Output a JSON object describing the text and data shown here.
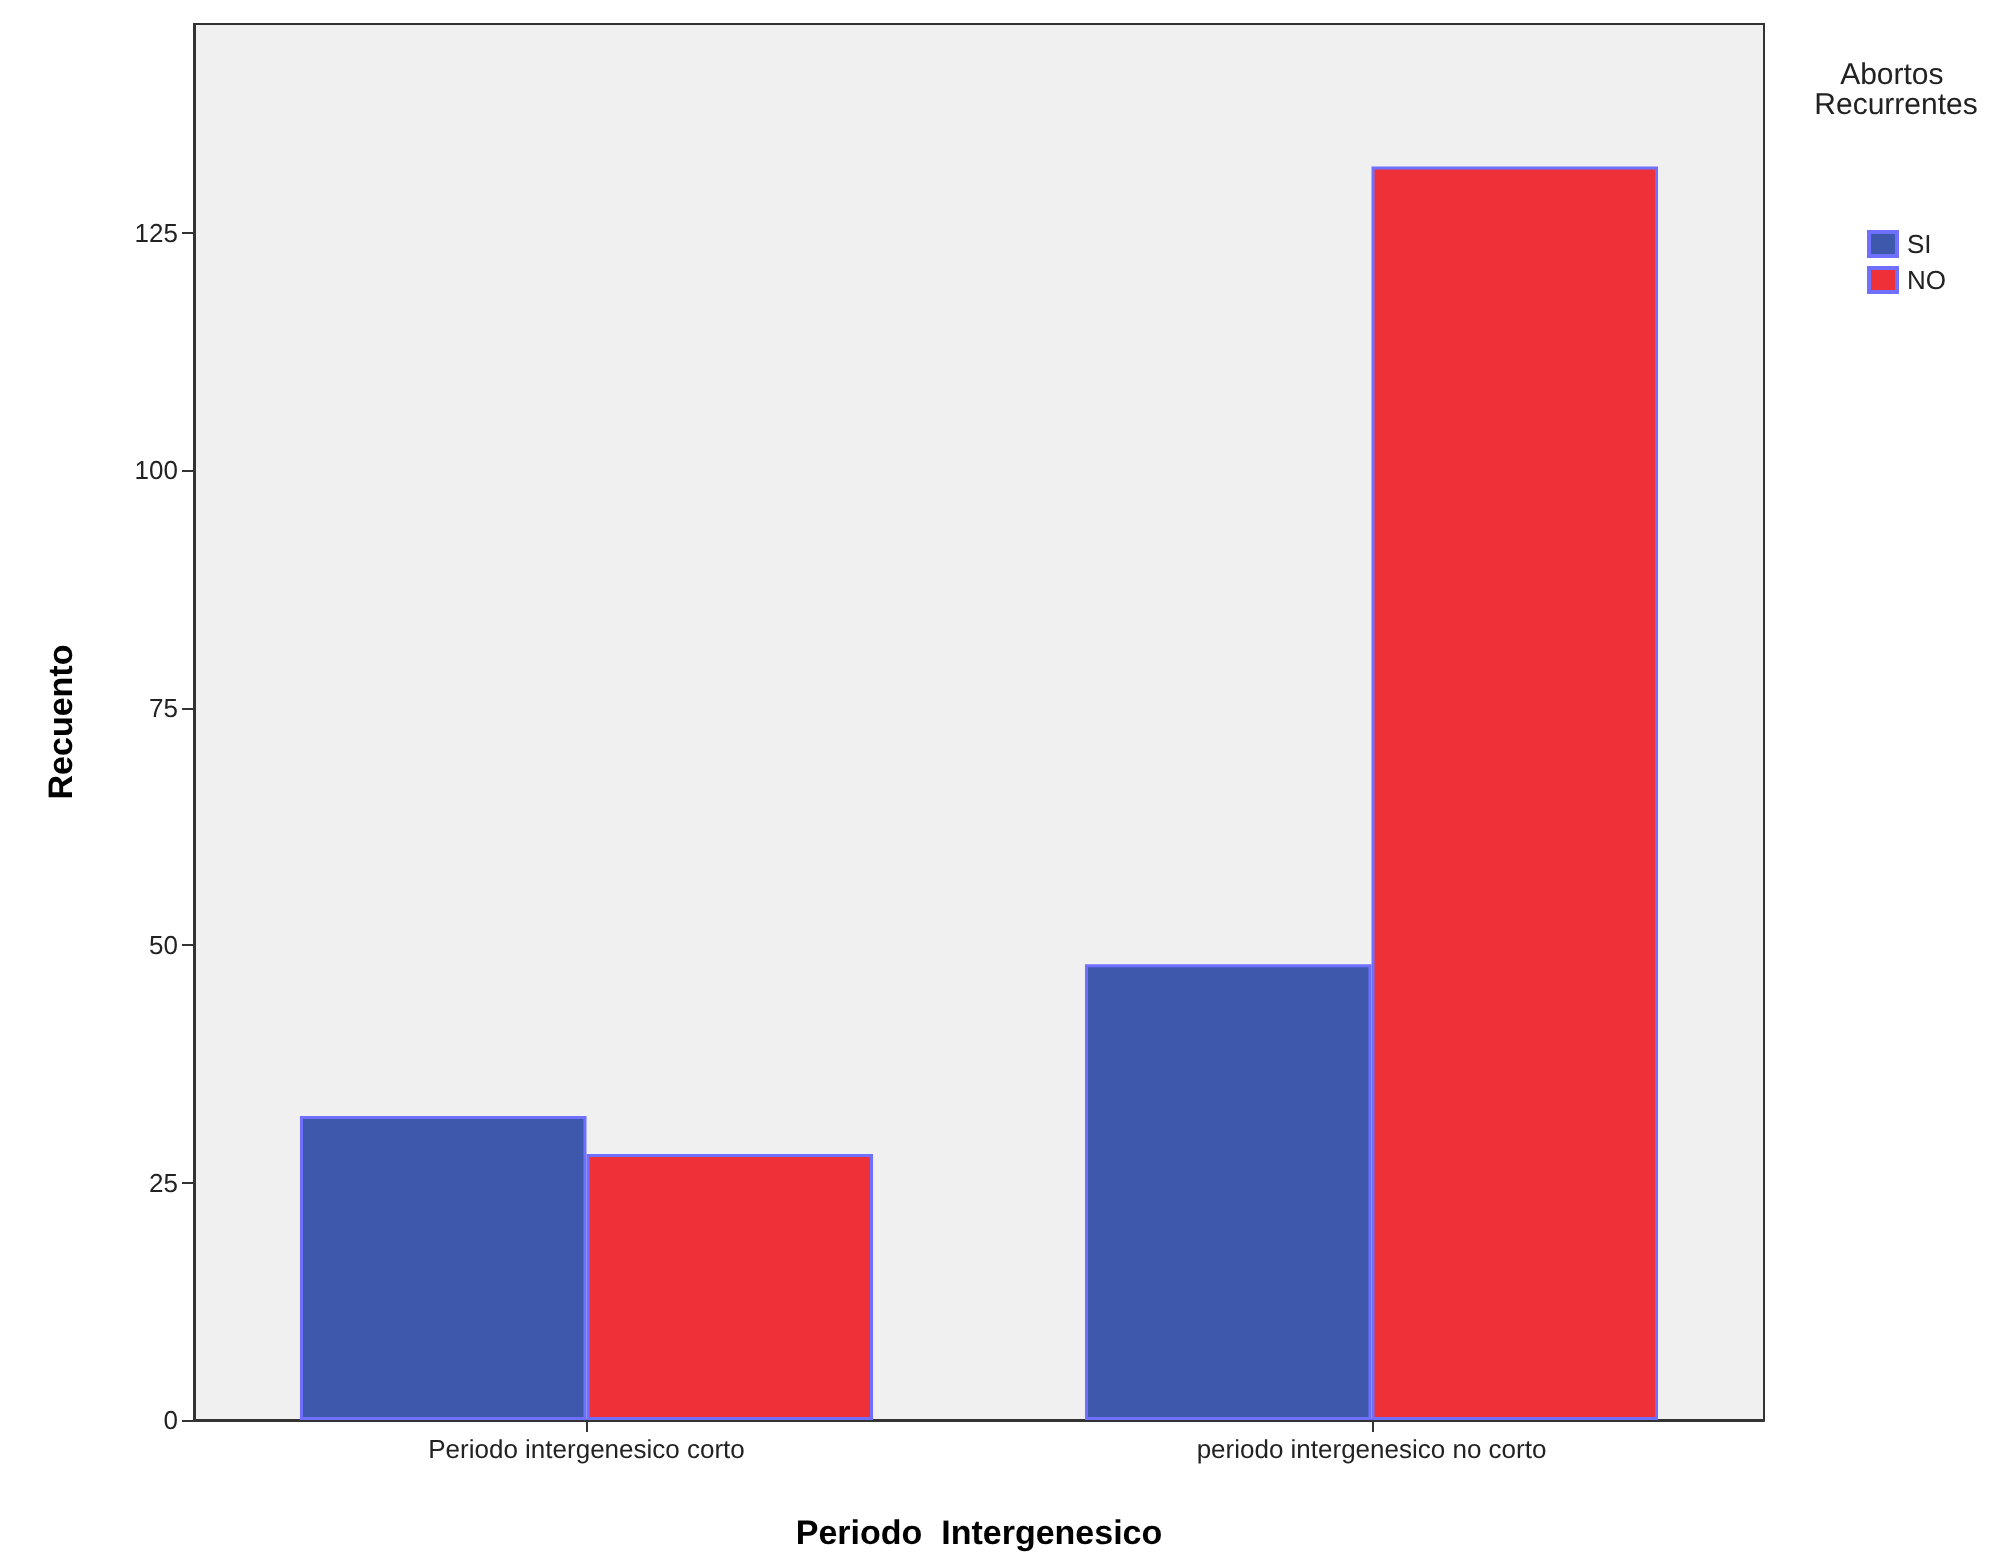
{
  "chart_data": {
    "type": "bar",
    "xlabel": "Periodo  Intergenesico",
    "ylabel": "Recuento",
    "legend_title": "Abortos Recurrentes",
    "categories": [
      "Periodo intergenesico corto",
      "periodo intergenesico no corto"
    ],
    "series": [
      {
        "name": "SI",
        "color": "#3e58ac",
        "values": [
          32,
          48
        ]
      },
      {
        "name": "NO",
        "color": "#ee3038",
        "values": [
          28,
          132
        ]
      }
    ],
    "ylim": [
      0,
      147
    ],
    "yticks": [
      0,
      25,
      50,
      75,
      100,
      125
    ],
    "grid": false,
    "legend": "top right"
  }
}
